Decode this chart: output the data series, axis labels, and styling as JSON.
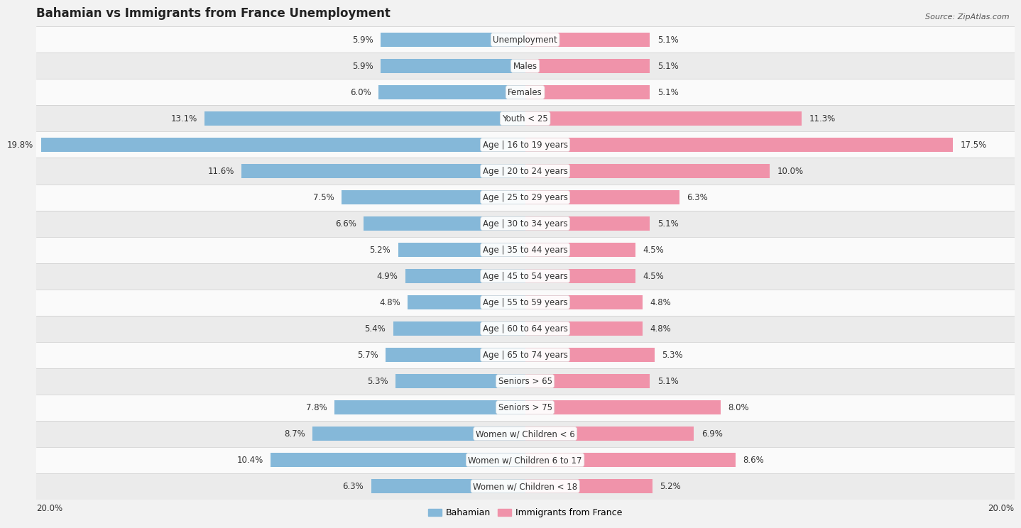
{
  "title": "Bahamian vs Immigrants from France Unemployment",
  "source": "Source: ZipAtlas.com",
  "categories": [
    "Unemployment",
    "Males",
    "Females",
    "Youth < 25",
    "Age | 16 to 19 years",
    "Age | 20 to 24 years",
    "Age | 25 to 29 years",
    "Age | 30 to 34 years",
    "Age | 35 to 44 years",
    "Age | 45 to 54 years",
    "Age | 55 to 59 years",
    "Age | 60 to 64 years",
    "Age | 65 to 74 years",
    "Seniors > 65",
    "Seniors > 75",
    "Women w/ Children < 6",
    "Women w/ Children 6 to 17",
    "Women w/ Children < 18"
  ],
  "bahamian": [
    5.9,
    5.9,
    6.0,
    13.1,
    19.8,
    11.6,
    7.5,
    6.6,
    5.2,
    4.9,
    4.8,
    5.4,
    5.7,
    5.3,
    7.8,
    8.7,
    10.4,
    6.3
  ],
  "france": [
    5.1,
    5.1,
    5.1,
    11.3,
    17.5,
    10.0,
    6.3,
    5.1,
    4.5,
    4.5,
    4.8,
    4.8,
    5.3,
    5.1,
    8.0,
    6.9,
    8.6,
    5.2
  ],
  "bahamian_color": "#85b8d9",
  "france_color": "#f093aa",
  "xlim": 20.0,
  "legend_label_left": "Bahamian",
  "legend_label_right": "Immigrants from France",
  "bg_color": "#f2f2f2",
  "row_color_light": "#fafafa",
  "row_color_dark": "#ebebeb",
  "title_fontsize": 12,
  "source_fontsize": 8,
  "value_fontsize": 8.5,
  "category_fontsize": 8.5,
  "legend_fontsize": 9,
  "axis_label_fontsize": 8.5
}
